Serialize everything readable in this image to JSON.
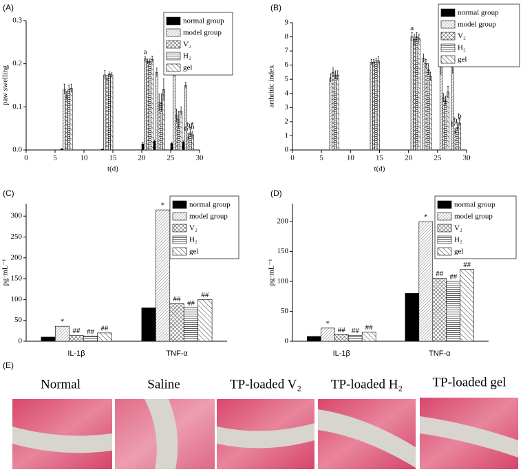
{
  "chart_data": [
    {
      "type": "bar",
      "panel": "(A)",
      "xlabel": "t(d)",
      "ylabel": "paw swelling",
      "x": [
        7,
        14,
        21,
        23,
        26,
        28
      ],
      "xlim": [
        0,
        30
      ],
      "xticks": [
        0,
        5,
        10,
        15,
        20,
        25,
        30
      ],
      "ylim": [
        0,
        0.3
      ],
      "yticks": [
        {
          "value": 0,
          "label": "0.0"
        },
        0.1,
        0.2,
        0.3
      ],
      "series": [
        {
          "name": "normal group",
          "color": "#000000",
          "pattern": "solid",
          "values": [
            0.003,
            0.002,
            0.014,
            0.02,
            0.015,
            0.018
          ],
          "errors": [
            0,
            0,
            0.003,
            0.003,
            0.003,
            0.003
          ],
          "significance": [
            null,
            null,
            null,
            null,
            null,
            null
          ]
        },
        {
          "name": "model group",
          "color": "#000000",
          "pattern": "dense",
          "values": [
            0.141,
            0.174,
            0.211,
            0.18,
            0.174,
            0.15
          ],
          "errors": [
            0.012,
            0.01,
            0.006,
            0.01,
            0.003,
            0.007
          ],
          "significance": [
            null,
            null,
            "a",
            null,
            null,
            null
          ]
        },
        {
          "name": "V₂",
          "color": "#000000",
          "pattern": "cross",
          "values": [
            0.126,
            0.165,
            0.205,
            0.11,
            0.08,
            0.03
          ],
          "errors": [
            0.01,
            0.008,
            0.006,
            0.02,
            0.015,
            0.008
          ],
          "significance": [
            null,
            null,
            null,
            null,
            null,
            "b*"
          ]
        },
        {
          "name": "H₂",
          "color": "#000000",
          "pattern": "horizontal",
          "values": [
            0.14,
            0.176,
            0.205,
            0.11,
            0.07,
            0.04
          ],
          "errors": [
            0.01,
            0.005,
            0.006,
            0.02,
            0.02,
            0.008
          ],
          "significance": [
            null,
            null,
            null,
            null,
            null,
            "b*"
          ]
        },
        {
          "name": "gel",
          "color": "#000000",
          "pattern": "diagonal",
          "values": [
            0.143,
            0.174,
            0.21,
            0.14,
            0.09,
            0.035
          ],
          "errors": [
            0.01,
            0.005,
            0.008,
            0.025,
            0.01,
            0.008
          ],
          "significance": [
            null,
            null,
            null,
            null,
            null,
            "b"
          ]
        }
      ]
    },
    {
      "type": "bar",
      "panel": "(B)",
      "xlabel": "t(d)",
      "ylabel": "arthritic index",
      "x": [
        7,
        14,
        21,
        23,
        26,
        28
      ],
      "xlim": [
        0,
        30
      ],
      "xticks": [
        0,
        5,
        10,
        15,
        20,
        25,
        30
      ],
      "ylim": [
        0,
        9
      ],
      "yticks": [
        0,
        1,
        2,
        3,
        4,
        5,
        6,
        7,
        8,
        9
      ],
      "series": [
        {
          "name": "normal group",
          "color": "#000000",
          "pattern": "solid",
          "values": [
            0,
            0,
            0,
            0,
            0,
            0
          ],
          "errors": [
            0,
            0,
            0,
            0,
            0,
            0
          ],
          "significance": [
            null,
            null,
            null,
            null,
            null,
            null
          ]
        },
        {
          "name": "model group",
          "color": "#000000",
          "pattern": "dense",
          "values": [
            5.1,
            6.2,
            8.0,
            6.5,
            6.2,
            6.0
          ],
          "errors": [
            0.3,
            0.2,
            0.3,
            0.3,
            0.9,
            0.6
          ],
          "significance": [
            null,
            null,
            "a",
            null,
            null,
            null
          ]
        },
        {
          "name": "V₂",
          "color": "#000000",
          "pattern": "cross",
          "values": [
            5.5,
            6.2,
            7.8,
            6.1,
            3.7,
            1.3
          ],
          "errors": [
            0.3,
            0.2,
            0.4,
            0.3,
            0.3,
            0.2
          ],
          "significance": [
            null,
            null,
            null,
            null,
            null,
            "b*"
          ]
        },
        {
          "name": "H₂",
          "color": "#000000",
          "pattern": "horizontal",
          "values": [
            5.3,
            6.3,
            8.0,
            5.7,
            3.5,
            1.6
          ],
          "errors": [
            0.3,
            0.2,
            0.3,
            0.4,
            0.3,
            0.2
          ],
          "significance": [
            null,
            null,
            null,
            null,
            null,
            "b*"
          ]
        },
        {
          "name": "gel",
          "color": "#000000",
          "pattern": "diagonal",
          "values": [
            5.3,
            6.3,
            7.9,
            5.2,
            4.1,
            1.9
          ],
          "errors": [
            0.3,
            0.3,
            0.3,
            0.3,
            0.4,
            0.2
          ],
          "significance": [
            null,
            null,
            null,
            null,
            null,
            "b"
          ]
        }
      ]
    },
    {
      "type": "bar",
      "panel": "(C)",
      "ylabel": "pg·mL⁻¹",
      "categories": [
        "IL-1β",
        "TNF-α"
      ],
      "ylim": [
        0,
        330
      ],
      "yticks": [
        0,
        50,
        100,
        150,
        200,
        250,
        300
      ],
      "series": [
        {
          "name": "normal group",
          "color": "#000000",
          "pattern": "solid",
          "values": [
            10,
            80
          ],
          "significance": [
            null,
            null
          ]
        },
        {
          "name": "model group",
          "color": "#000000",
          "pattern": "dense",
          "values": [
            36,
            315
          ],
          "significance": [
            "*",
            "*"
          ]
        },
        {
          "name": "V₂",
          "color": "#000000",
          "pattern": "cross",
          "values": [
            14,
            90
          ],
          "significance": [
            "##",
            "##"
          ]
        },
        {
          "name": "H₂",
          "color": "#000000",
          "pattern": "horizontal",
          "values": [
            12,
            80
          ],
          "significance": [
            "##",
            "##"
          ]
        },
        {
          "name": "gel",
          "color": "#000000",
          "pattern": "diagonal",
          "values": [
            20,
            100
          ],
          "significance": [
            "##",
            "##"
          ]
        }
      ]
    },
    {
      "type": "bar",
      "panel": "(D)",
      "ylabel": "pg·mL⁻¹",
      "categories": [
        "IL-1β",
        "TNF-α"
      ],
      "ylim": [
        0,
        230
      ],
      "yticks": [
        0,
        50,
        100,
        150,
        200
      ],
      "series": [
        {
          "name": "normal group",
          "color": "#000000",
          "pattern": "solid",
          "values": [
            8,
            80
          ],
          "significance": [
            null,
            null
          ]
        },
        {
          "name": "model group",
          "color": "#000000",
          "pattern": "dense",
          "values": [
            22,
            200
          ],
          "significance": [
            "*",
            "*"
          ]
        },
        {
          "name": "V₂",
          "color": "#000000",
          "pattern": "cross",
          "values": [
            11,
            105
          ],
          "significance": [
            "##",
            "##"
          ]
        },
        {
          "name": "H₂",
          "color": "#000000",
          "pattern": "horizontal",
          "values": [
            10,
            100
          ],
          "significance": [
            "##",
            "##"
          ]
        },
        {
          "name": "gel",
          "color": "#000000",
          "pattern": "diagonal",
          "values": [
            15,
            120
          ],
          "significance": [
            "##",
            "##"
          ]
        }
      ]
    }
  ],
  "histology": {
    "label": "(E)",
    "captions": [
      "Normal",
      "Saline",
      "TP-loaded V₂",
      "TP-loaded H₂",
      "TP-loaded gel"
    ]
  }
}
